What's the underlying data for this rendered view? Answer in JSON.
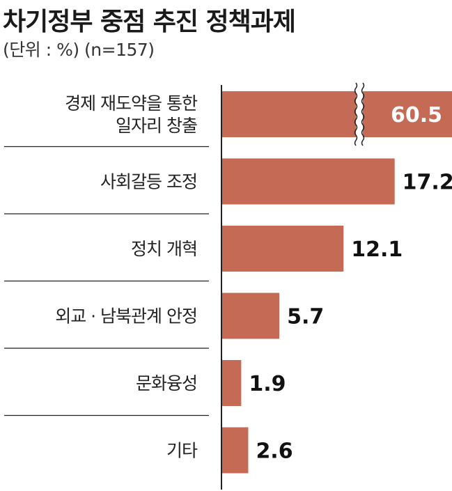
{
  "header": {
    "title": "차기정부 중점 추진 정책과제",
    "subtitle": "(단위 : %) (n=157)"
  },
  "colors": {
    "bar": "#c56a55",
    "axis": "#222222",
    "separator": "#222222"
  },
  "chart_data": {
    "type": "bar",
    "orientation": "horizontal",
    "categories": [
      "경제 재도약을 통한 일자리 창출",
      "사회갈등 조정",
      "정치 개혁",
      "외교 · 남북관계 안정",
      "문화융성",
      "기타"
    ],
    "category_lines": [
      [
        "경제 재도약을 통한",
        "일자리 창출"
      ],
      [
        "사회갈등 조정"
      ],
      [
        "정치 개혁"
      ],
      [
        "외교 · 남북관계 안정"
      ],
      [
        "문화융성"
      ],
      [
        "기타"
      ]
    ],
    "values": [
      60.5,
      17.2,
      12.1,
      5.7,
      1.9,
      2.6
    ],
    "value_labels": [
      "60.5",
      "17.2",
      "12.1",
      "5.7",
      "1.9",
      "2.6"
    ],
    "axis_break": true,
    "grid": false,
    "legend": "none"
  }
}
